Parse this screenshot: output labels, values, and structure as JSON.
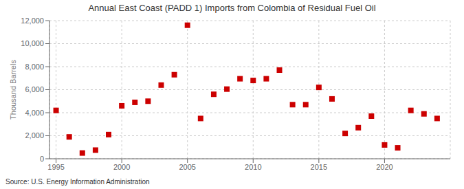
{
  "chart_data": {
    "type": "scatter",
    "title": "Annual East Coast (PADD 1) Imports from Colombia of Residual Fuel Oil",
    "ylabel": "Thousand Barrels",
    "annotations": [
      "Source: U.S. Energy Information Administration"
    ],
    "x": [
      1995,
      1996,
      1997,
      1998,
      1999,
      2000,
      2001,
      2002,
      2003,
      2004,
      2005,
      2006,
      2007,
      2008,
      2009,
      2010,
      2011,
      2012,
      2013,
      2014,
      2015,
      2016,
      2017,
      2018,
      2019,
      2020,
      2021,
      2022,
      2023,
      2024
    ],
    "values": [
      4200,
      1900,
      500,
      750,
      2100,
      4600,
      4900,
      5000,
      6400,
      7300,
      11600,
      3500,
      5600,
      6050,
      6950,
      6800,
      6950,
      7700,
      4700,
      4700,
      6200,
      5200,
      2200,
      2700,
      3700,
      1200,
      950,
      4200,
      3900,
      3500
    ],
    "color": "#cc0000",
    "marker": "square",
    "xlim": [
      1994.5,
      2025.0
    ],
    "ylim": [
      0,
      12000
    ],
    "xticks": [
      1995,
      2000,
      2005,
      2010,
      2015,
      2020
    ],
    "yticks": [
      0,
      {
        "value": 2000,
        "label": "2,000"
      },
      {
        "value": 4000,
        "label": "4,000"
      },
      {
        "value": 6000,
        "label": "6,000"
      },
      {
        "value": 8000,
        "label": "8,000"
      },
      {
        "value": 10000,
        "label": "10,000"
      },
      {
        "value": 12000,
        "label": "12,000"
      }
    ],
    "grid": true
  }
}
